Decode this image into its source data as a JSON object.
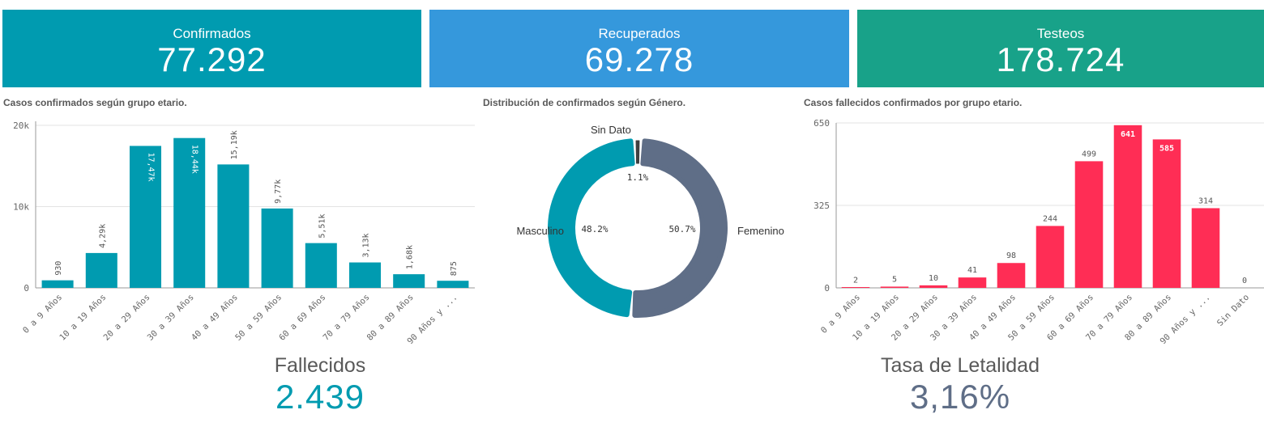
{
  "kpis": {
    "confirmados": {
      "label": "Confirmados",
      "value": "77.292",
      "color": "#009bb0"
    },
    "recuperados": {
      "label": "Recuperados",
      "value": "69.278",
      "color": "#3598dc"
    },
    "testeos": {
      "label": "Testeos",
      "value": "178.724",
      "color": "#18a289"
    }
  },
  "bottom": {
    "fallecidos": {
      "label": "Fallecidos",
      "value": "2.439",
      "color": "#009bb0"
    },
    "letalidad": {
      "label": "Tasa de Letalidad",
      "value": "3,16%",
      "color": "#5f6e87"
    }
  },
  "chart_data": [
    {
      "type": "bar",
      "title": "Casos confirmados según grupo etario.",
      "categories": [
        "0 a 9 Años",
        "10 a 19 Años",
        "20 a 29 Años",
        "30 a 39 Años",
        "40 a 49 Años",
        "50 a 59 Años",
        "60 a 69 Años",
        "70 a 79 Años",
        "80 a 89 Años",
        "90 Años y ..."
      ],
      "values": [
        930,
        4290,
        17470,
        18440,
        15190,
        9770,
        5510,
        3130,
        1680,
        875
      ],
      "value_labels": [
        "930",
        "4,29k",
        "17,47k",
        "18,44k",
        "15,19k",
        "9,77k",
        "5,51k",
        "3,13k",
        "1,68k",
        "875"
      ],
      "label_inside": [
        false,
        false,
        true,
        true,
        false,
        false,
        false,
        false,
        false,
        false
      ],
      "ylim": [
        0,
        20500
      ],
      "yticks": [
        0,
        10000,
        20000
      ],
      "ytick_labels": [
        "0",
        "10k",
        "20k"
      ],
      "color": "#009bb0"
    },
    {
      "type": "pie",
      "title": "Distribución de confirmados según Género.",
      "labels": [
        "Femenino",
        "Masculino",
        "Sin Dato"
      ],
      "values": [
        50.7,
        48.2,
        1.1
      ],
      "value_labels": [
        "50.7%",
        "48.2%",
        "1.1%"
      ],
      "colors": [
        "#5f6e87",
        "#009bb0",
        "#404040"
      ]
    },
    {
      "type": "bar",
      "title": "Casos fallecidos confirmados por grupo etario.",
      "categories": [
        "0 a 9 Años",
        "10 a 19 Años",
        "20 a 29 Años",
        "30 a 39 Años",
        "40 a 49 Años",
        "50 a 59 Años",
        "60 a 69 Años",
        "70 a 79 Años",
        "80 a 89 Años",
        "90 Años y ...",
        "Sin Dato"
      ],
      "values": [
        2,
        5,
        10,
        41,
        98,
        244,
        499,
        641,
        585,
        314,
        0
      ],
      "value_labels": [
        "2",
        "5",
        "10",
        "41",
        "98",
        "244",
        "499",
        "641",
        "585",
        "314",
        "0"
      ],
      "label_inside": [
        false,
        false,
        false,
        false,
        false,
        false,
        false,
        true,
        true,
        false,
        false
      ],
      "ylim": [
        0,
        650
      ],
      "yticks": [
        0,
        325,
        650
      ],
      "ytick_labels": [
        "0",
        "325",
        "650"
      ],
      "color": "#ff2d55"
    }
  ]
}
